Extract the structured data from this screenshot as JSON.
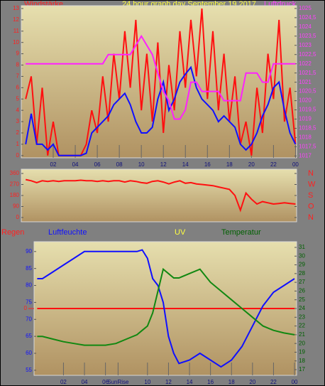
{
  "chart_data": [
    {
      "type": "line",
      "title": "24 hour graph day   September 19 2017",
      "y_label": "Windstärke",
      "y2_label": "Luftdruck",
      "x": [
        -0.5,
        0,
        0.5,
        1,
        1.5,
        2,
        2.5,
        3,
        3.5,
        4,
        4.5,
        5,
        5.5,
        6,
        6.5,
        7,
        7.5,
        8,
        8.5,
        9,
        9.5,
        10,
        10.5,
        11,
        11.5,
        12,
        12.5,
        13,
        13.5,
        14,
        14.5,
        15,
        15.5,
        16,
        16.5,
        17,
        17.5,
        18,
        18.5,
        19,
        19.5,
        20,
        20.5,
        21,
        21.5,
        22,
        22.5,
        23,
        23.5,
        24
      ],
      "xlim": [
        -0.9,
        24.1
      ],
      "xticks": [
        {
          "value": 2,
          "label": "02"
        },
        {
          "value": 4,
          "label": "04"
        },
        {
          "value": 6,
          "label": "06"
        },
        {
          "value": 8,
          "label": "08"
        },
        {
          "value": 10,
          "label": "10"
        },
        12,
        14,
        16,
        18,
        20,
        22,
        {
          "value": 24,
          "label": "00"
        }
      ],
      "ylim": [
        -0.2,
        13.25
      ],
      "yticks": [
        0,
        1,
        2,
        3,
        4,
        5,
        6,
        7,
        8,
        9,
        10,
        11,
        12,
        13
      ],
      "y2lim": [
        1016.9,
        1025.15
      ],
      "y2ticks": [
        1017,
        {
          "value": 1017.5,
          "label": "1017,5"
        },
        1018,
        {
          "value": 1018.5,
          "label": "1018,5"
        },
        1019,
        {
          "value": 1019.5,
          "label": "1019,5"
        },
        1020,
        {
          "value": 1020.5,
          "label": "1020,5"
        },
        1021,
        {
          "value": 1021.5,
          "label": "1021,5"
        },
        1022,
        {
          "value": 1022.5,
          "label": "1022,5"
        },
        1023,
        {
          "value": 1023.5,
          "label": "1023,5"
        },
        1024,
        {
          "value": 1024.5,
          "label": "1024,5"
        },
        1025
      ],
      "series": [
        {
          "color": "#ff1010",
          "values": [
            5,
            7,
            1,
            6,
            0,
            3,
            0,
            0,
            0,
            0,
            0,
            1,
            4,
            2,
            7,
            3,
            9,
            5,
            11,
            6,
            12,
            4,
            9,
            3,
            10,
            2,
            8,
            4,
            11,
            6,
            12,
            7,
            13,
            5,
            11,
            4,
            9,
            3,
            7,
            1,
            3,
            0,
            6,
            2,
            9,
            5,
            12,
            3,
            6,
            1
          ]
        },
        {
          "color": "#1010ff",
          "values": [
            1,
            3.7,
            1,
            1,
            0.5,
            1,
            0,
            0,
            0,
            0,
            0,
            0.2,
            2,
            2.5,
            3,
            3.5,
            4.5,
            5,
            5.5,
            4.5,
            3,
            2,
            2,
            2.5,
            5,
            6.5,
            4,
            5,
            6.5,
            7.2,
            7.8,
            6,
            5,
            4.5,
            4,
            3,
            3.5,
            3,
            2.5,
            1,
            0.5,
            1,
            2,
            3.5,
            4.5,
            6,
            6.5,
            4,
            2,
            1
          ]
        },
        {
          "color": "#ff20ff",
          "axis": "y2",
          "values": [
            1022,
            1022,
            1022,
            1022,
            1022,
            1022,
            1022,
            1022,
            1022,
            1022,
            1022,
            1022,
            1022,
            1022,
            1022,
            1022.5,
            1022.5,
            1022.5,
            1022.5,
            1022.5,
            1023,
            1023.5,
            1023,
            1022.5,
            1021.5,
            1020.5,
            1020,
            1019,
            1019,
            1019.5,
            1021,
            1021,
            1020.5,
            1020.5,
            1020.5,
            1020.5,
            1020,
            1020,
            1020,
            1020,
            1021.5,
            1021.5,
            1021.5,
            1021,
            1021,
            1022,
            1022,
            1022,
            1022,
            1022
          ]
        }
      ]
    },
    {
      "type": "line",
      "x": [
        -0.5,
        0,
        0.5,
        1,
        1.5,
        2,
        2.5,
        3,
        3.5,
        4,
        4.5,
        5,
        5.5,
        6,
        6.5,
        7,
        7.5,
        8,
        8.5,
        9,
        9.5,
        10,
        10.5,
        11,
        11.5,
        12,
        12.5,
        13,
        13.5,
        14,
        14.5,
        15,
        15.5,
        16,
        16.5,
        17,
        17.5,
        18,
        18.5,
        19,
        19.5,
        20,
        20.5,
        21,
        21.5,
        22,
        22.5,
        23,
        23.5,
        24
      ],
      "xlim": [
        -0.9,
        24.1
      ],
      "ylim": [
        -35,
        395
      ],
      "yticks": [
        0,
        90,
        180,
        270,
        360
      ],
      "y2ticks": [
        {
          "value": 360,
          "label": "N"
        },
        {
          "value": 270,
          "label": "W"
        },
        {
          "value": 180,
          "label": "S"
        },
        {
          "value": 90,
          "label": "O"
        },
        {
          "value": 0,
          "label": "N"
        }
      ],
      "series": [
        {
          "color": "#ff1010",
          "values": [
            310,
            300,
            285,
            300,
            295,
            300,
            295,
            300,
            300,
            300,
            305,
            300,
            300,
            295,
            300,
            295,
            300,
            300,
            290,
            300,
            295,
            285,
            280,
            295,
            300,
            290,
            275,
            290,
            300,
            280,
            285,
            275,
            270,
            265,
            260,
            250,
            240,
            230,
            180,
            60,
            200,
            150,
            110,
            130,
            120,
            110,
            115,
            120,
            115,
            110
          ]
        }
      ]
    },
    {
      "type": "line",
      "y_label": "Luftfeuchte",
      "y2_label": "Temperatur",
      "y3_label": "Regen",
      "uv_label": "UV",
      "x": [
        -0.5,
        0,
        1,
        2,
        3,
        4,
        5,
        6,
        7,
        8,
        9,
        9.5,
        10,
        10.5,
        11,
        11.5,
        12,
        12.5,
        13,
        14,
        15,
        16,
        17,
        18,
        19,
        20,
        21,
        22,
        23,
        24
      ],
      "xlim": [
        -0.8,
        24.2
      ],
      "xticks": [
        {
          "value": 2,
          "label": "02"
        },
        {
          "value": 4,
          "label": "04"
        },
        {
          "value": 6,
          "label": "06"
        },
        {
          "value": 7.2,
          "label": "SunRise"
        },
        {
          "value": 10,
          "label": "10"
        },
        12,
        14,
        16,
        18,
        20,
        22,
        {
          "value": 24,
          "label": "00"
        }
      ],
      "ylim": [
        53.5,
        92.9
      ],
      "yticks": [
        55,
        60,
        65,
        70,
        75,
        80,
        85,
        90
      ],
      "y2lim": [
        16.35,
        31.65
      ],
      "y2ticks": [
        17,
        18,
        19,
        20,
        21,
        22,
        23,
        24,
        25,
        26,
        27,
        28,
        29,
        30,
        31
      ],
      "y3lim": [
        -1,
        1
      ],
      "y3ticks": [
        0
      ],
      "series": [
        {
          "color": "#ff1010",
          "axis": "y3",
          "values": [
            0,
            0,
            0,
            0,
            0,
            0,
            0,
            0,
            0,
            0,
            0,
            0,
            0,
            0,
            0,
            0,
            0,
            0,
            0,
            0,
            0,
            0,
            0,
            0,
            0,
            0,
            0,
            0,
            0,
            0
          ]
        },
        {
          "color": "#1010ff",
          "values": [
            82,
            82,
            84,
            86,
            88,
            90,
            90,
            90,
            90,
            90,
            90,
            90.5,
            88,
            82,
            80,
            75,
            65,
            60,
            57,
            58,
            60,
            58,
            56,
            58,
            62,
            68,
            74,
            78,
            80,
            82
          ]
        },
        {
          "color": "#118811",
          "axis": "y2",
          "values": [
            20.8,
            20.8,
            20.5,
            20.2,
            20,
            19.8,
            19.8,
            19.8,
            20,
            20.5,
            21,
            21.5,
            22,
            23.5,
            26,
            28.5,
            28,
            27.5,
            27.5,
            28,
            28.5,
            27,
            26,
            25,
            24,
            23,
            22,
            21.5,
            21.2,
            21
          ]
        }
      ]
    }
  ]
}
